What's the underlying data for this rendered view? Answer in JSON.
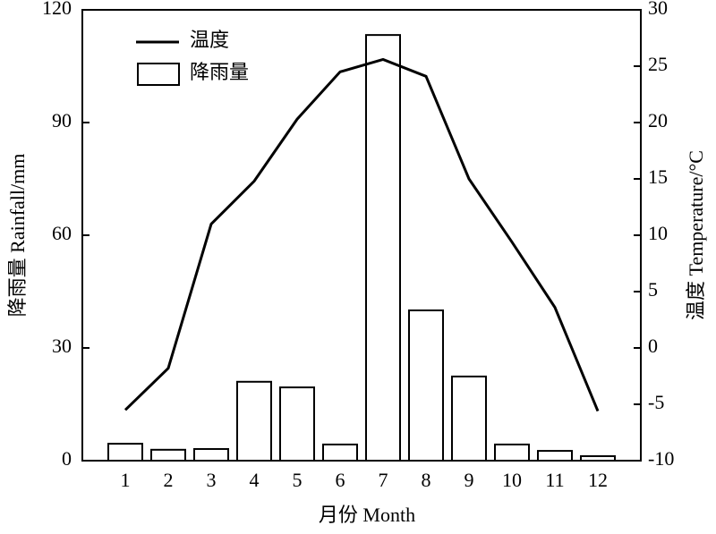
{
  "chart_data": {
    "type": "bar-line",
    "categories": [
      "1",
      "2",
      "3",
      "4",
      "5",
      "6",
      "7",
      "8",
      "9",
      "10",
      "11",
      "12"
    ],
    "series": [
      {
        "name": "降雨量",
        "type": "bar",
        "color": "#ffffff",
        "values": [
          4.5,
          2.9,
          3.1,
          21,
          19.5,
          4.3,
          113.3,
          40,
          22.4,
          4.3,
          2.6,
          1.2
        ]
      },
      {
        "name": "温度",
        "type": "line",
        "axis": "y2",
        "color": "#000000",
        "values": [
          -5.5,
          -1.8,
          11,
          14.8,
          20.3,
          24.5,
          25.6,
          24.1,
          15,
          9.4,
          3.6,
          -5.6
        ]
      }
    ],
    "xlabel": "月份  Month",
    "ylabel": "降雨量 Rainfall/mm",
    "y2label": "温度 Temperature/°C",
    "ylim": [
      0,
      120
    ],
    "yticks": [
      0,
      30,
      60,
      90,
      120
    ],
    "y2lim": [
      -10,
      30
    ],
    "y2ticks": [
      -10,
      -5,
      0,
      5,
      10,
      15,
      20,
      25,
      30
    ],
    "legend": "upper-left"
  }
}
